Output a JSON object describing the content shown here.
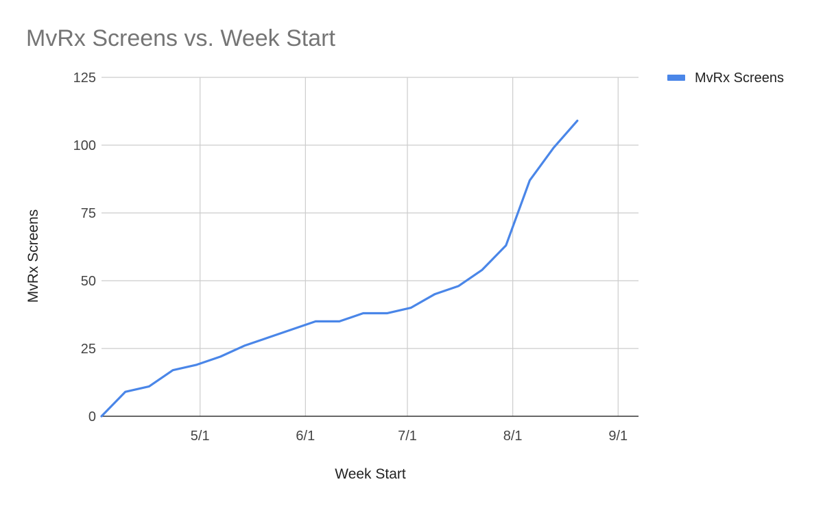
{
  "chart_data": {
    "type": "line",
    "title": "MvRx Screens vs. Week Start",
    "xlabel": "Week Start",
    "ylabel": "MvRx Screens",
    "ylim": [
      0,
      125
    ],
    "y_ticks": [
      0,
      25,
      50,
      75,
      100,
      125
    ],
    "xlim": [
      "2018-04-02",
      "2018-09-07"
    ],
    "x_ticks": [
      {
        "date": "2018-05-01",
        "label": "5/1"
      },
      {
        "date": "2018-06-01",
        "label": "6/1"
      },
      {
        "date": "2018-07-01",
        "label": "7/1"
      },
      {
        "date": "2018-08-01",
        "label": "8/1"
      },
      {
        "date": "2018-09-01",
        "label": "9/1"
      }
    ],
    "grid": true,
    "legend": {
      "position": "right"
    },
    "series": [
      {
        "name": "MvRx Screens",
        "color": "#4a86e8",
        "points": [
          {
            "x": "2018-04-02",
            "y": 0
          },
          {
            "x": "2018-04-09",
            "y": 9
          },
          {
            "x": "2018-04-16",
            "y": 11
          },
          {
            "x": "2018-04-23",
            "y": 17
          },
          {
            "x": "2018-04-30",
            "y": 19
          },
          {
            "x": "2018-05-07",
            "y": 22
          },
          {
            "x": "2018-05-14",
            "y": 26
          },
          {
            "x": "2018-05-21",
            "y": 29
          },
          {
            "x": "2018-05-28",
            "y": 32
          },
          {
            "x": "2018-06-04",
            "y": 35
          },
          {
            "x": "2018-06-11",
            "y": 35
          },
          {
            "x": "2018-06-18",
            "y": 38
          },
          {
            "x": "2018-06-25",
            "y": 38
          },
          {
            "x": "2018-07-02",
            "y": 40
          },
          {
            "x": "2018-07-09",
            "y": 45
          },
          {
            "x": "2018-07-16",
            "y": 48
          },
          {
            "x": "2018-07-23",
            "y": 54
          },
          {
            "x": "2018-07-30",
            "y": 63
          },
          {
            "x": "2018-08-06",
            "y": 87
          },
          {
            "x": "2018-08-13",
            "y": 99
          },
          {
            "x": "2018-08-20",
            "y": 109
          }
        ]
      }
    ]
  }
}
